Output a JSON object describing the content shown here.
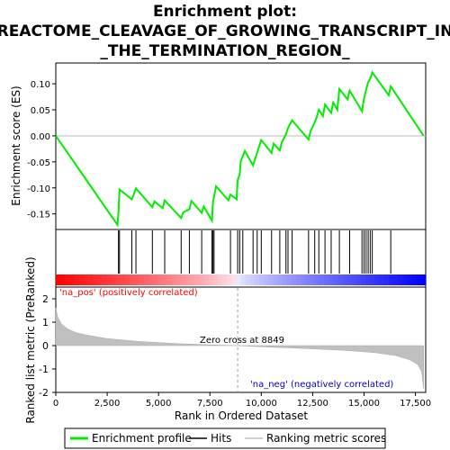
{
  "chart_data": {
    "type": "line",
    "title_lines": [
      "Enrichment plot:",
      "REACTOME_CLEAVAGE_OF_GROWING_TRANSCRIPT_IN",
      "_THE_TERMINATION_REGION_"
    ],
    "es_panel": {
      "ylabel": "Enrichment score (ES)",
      "ylim": [
        -0.18,
        0.14
      ],
      "yticks": [
        0.1,
        0.05,
        0.0,
        -0.05,
        -0.1,
        -0.15
      ],
      "ytick_labels": [
        "0.10",
        "0.05",
        "0.00",
        "-0.05",
        "-0.10",
        "-0.15"
      ],
      "xlim": [
        0,
        18000
      ],
      "series": [
        {
          "name": "Enrichment profile",
          "color": "#00ee00",
          "x": [
            0,
            3000,
            3050,
            3100,
            3700,
            3800,
            3900,
            4700,
            4800,
            5200,
            5300,
            6100,
            6200,
            6500,
            6600,
            7100,
            7200,
            7600,
            7650,
            7700,
            7800,
            8400,
            8500,
            8800,
            8850,
            8950,
            9000,
            9100,
            9200,
            9600,
            9700,
            9800,
            9900,
            10000,
            10500,
            10600,
            10900,
            11000,
            11200,
            11300,
            11500,
            11600,
            12300,
            12400,
            12600,
            12700,
            12800,
            13000,
            13100,
            13400,
            13500,
            13700,
            13800,
            14000,
            14200,
            14300,
            14900,
            15000,
            15100,
            15200,
            15300,
            15400,
            16200,
            16300,
            17900
          ],
          "y": [
            0.0,
            -0.171,
            -0.148,
            -0.103,
            -0.122,
            -0.112,
            -0.101,
            -0.137,
            -0.126,
            -0.139,
            -0.124,
            -0.158,
            -0.147,
            -0.141,
            -0.125,
            -0.148,
            -0.136,
            -0.163,
            -0.127,
            -0.117,
            -0.097,
            -0.124,
            -0.113,
            -0.122,
            -0.085,
            -0.074,
            -0.049,
            -0.039,
            -0.029,
            -0.057,
            -0.044,
            -0.032,
            -0.02,
            -0.008,
            -0.033,
            -0.015,
            -0.028,
            -0.012,
            0.003,
            0.015,
            0.03,
            0.025,
            -0.007,
            0.009,
            0.026,
            0.036,
            0.05,
            0.038,
            0.06,
            0.044,
            0.064,
            0.05,
            0.09,
            0.08,
            0.07,
            0.087,
            0.047,
            0.072,
            0.088,
            0.103,
            0.11,
            0.122,
            0.078,
            0.095,
            0.0
          ]
        }
      ]
    },
    "hits": [
      3050,
      3100,
      3700,
      3900,
      4700,
      5300,
      6100,
      6500,
      7100,
      7600,
      7650,
      7700,
      8500,
      8850,
      8950,
      9100,
      9600,
      9800,
      10000,
      10500,
      10900,
      11200,
      11300,
      11500,
      12300,
      12600,
      12800,
      13100,
      13400,
      13800,
      14300,
      14900,
      15000,
      15100,
      15200,
      15300,
      15400,
      16300
    ],
    "metric_panel": {
      "ylabel": "Ranked list metric (PreRanked)",
      "xlabel": "Rank in Ordered Dataset",
      "ylim": [
        -2,
        2.5
      ],
      "yticks": [
        2,
        1,
        0,
        -1,
        -2
      ],
      "ytick_labels": [
        "2",
        "1",
        "0",
        "-1",
        "-2"
      ],
      "xticks": [
        0,
        2500,
        5000,
        7500,
        10000,
        12500,
        15000,
        17500
      ],
      "xtick_labels": [
        "0",
        "2,500",
        "5,000",
        "7,500",
        "10,000",
        "12,500",
        "15,000",
        "17,500"
      ],
      "zero_cross": 8849,
      "zero_cross_label": "Zero cross at 8849",
      "pos_label": "'na_pos' (positively correlated)",
      "neg_label": "'na_neg' (negatively correlated)",
      "metric_x": [
        0,
        100,
        300,
        600,
        1000,
        1500,
        2500,
        4000,
        6000,
        8000,
        8849,
        10000,
        12000,
        14000,
        15500,
        16500,
        17200,
        17600,
        17800,
        17900
      ],
      "metric_y": [
        1.6,
        1.2,
        0.9,
        0.7,
        0.55,
        0.45,
        0.3,
        0.18,
        0.08,
        0.02,
        0.0,
        -0.05,
        -0.12,
        -0.2,
        -0.3,
        -0.42,
        -0.6,
        -0.8,
        -1.1,
        -1.85
      ]
    },
    "legend": [
      "Enrichment profile",
      "Hits",
      "Ranking metric scores"
    ]
  },
  "colors": {
    "es_line": "#00ee00",
    "hit": "#000000",
    "metric_fill": "#c0c0c0",
    "pos_label": "#ff0000",
    "neg_label": "#0000cc",
    "zero_line": "#999999"
  }
}
